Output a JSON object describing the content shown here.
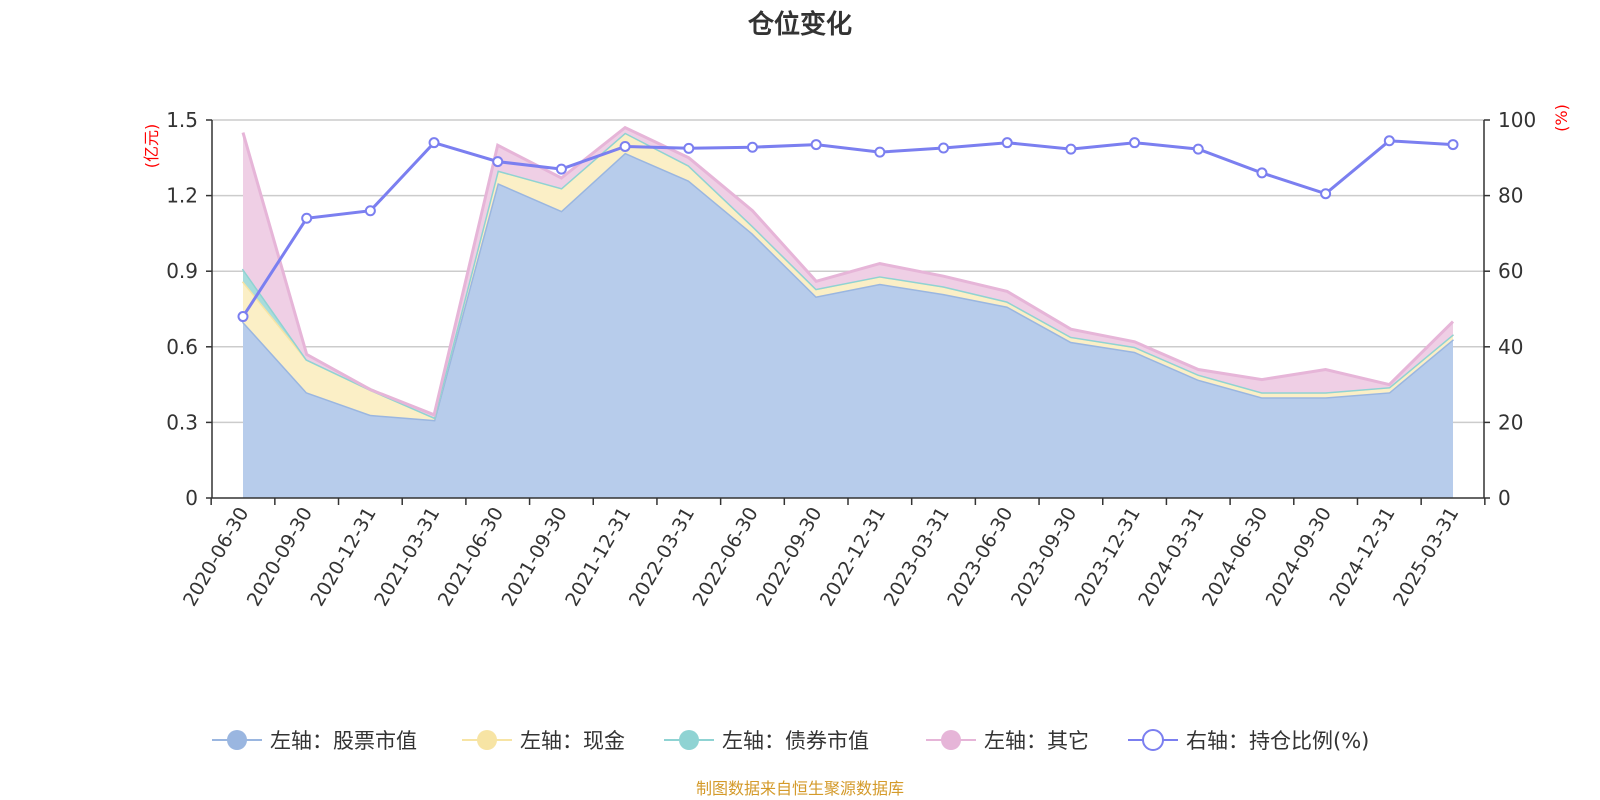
{
  "chart_data": {
    "type": "area",
    "title": "仓位变化",
    "left_axis_unit": "(亿元)",
    "right_axis_unit": "(%)",
    "x": [
      "2020-06-30",
      "2020-09-30",
      "2020-12-31",
      "2021-03-31",
      "2021-06-30",
      "2021-09-30",
      "2021-12-31",
      "2022-03-31",
      "2022-06-30",
      "2022-09-30",
      "2022-12-31",
      "2023-03-31",
      "2023-06-30",
      "2023-09-30",
      "2023-12-31",
      "2024-03-31",
      "2024-06-30",
      "2024-09-30",
      "2024-12-31",
      "2025-03-31"
    ],
    "y_left_ticks": [
      "0",
      "0.3",
      "0.6",
      "0.9",
      "1.2",
      "1.5"
    ],
    "y_right_ticks": [
      "0",
      "20",
      "40",
      "60",
      "80",
      "100"
    ],
    "ylim_left": [
      0,
      1.5
    ],
    "ylim_right": [
      0,
      100
    ],
    "stacked": true,
    "grid": true,
    "legend_position": "bottom",
    "series": [
      {
        "name": "左轴：股票市值",
        "axis": "left",
        "color": "#9ab6e0",
        "fill": "#b7cceb",
        "values": [
          0.7,
          0.42,
          0.33,
          0.31,
          1.25,
          1.14,
          1.37,
          1.26,
          1.05,
          0.8,
          0.85,
          0.81,
          0.76,
          0.62,
          0.58,
          0.47,
          0.4,
          0.4,
          0.42,
          0.63
        ]
      },
      {
        "name": "左轴：现金",
        "axis": "left",
        "color": "#f7e4a4",
        "fill": "#fbefc6",
        "values": [
          0.16,
          0.13,
          0.1,
          0.01,
          0.05,
          0.09,
          0.08,
          0.06,
          0.03,
          0.03,
          0.03,
          0.03,
          0.02,
          0.02,
          0.02,
          0.02,
          0.02,
          0.02,
          0.02,
          0.02
        ]
      },
      {
        "name": "左轴：债券市值",
        "axis": "left",
        "color": "#8fd3d3",
        "fill": "#a8dcdc",
        "values": [
          0.05,
          0.0,
          0.0,
          0.0,
          0.0,
          0.0,
          0.0,
          0.0,
          0.0,
          0.0,
          0.0,
          0.0,
          0.0,
          0.0,
          0.0,
          0.0,
          0.0,
          0.0,
          0.0,
          0.0
        ]
      },
      {
        "name": "左轴：其它",
        "axis": "left",
        "color": "#e6b5d8",
        "fill": "#efcfe5",
        "values": [
          0.54,
          0.02,
          0.0,
          0.01,
          0.1,
          0.04,
          0.02,
          0.03,
          0.06,
          0.03,
          0.05,
          0.04,
          0.04,
          0.03,
          0.02,
          0.02,
          0.05,
          0.09,
          0.01,
          0.05
        ]
      },
      {
        "name": "右轴：持仓比例(%)",
        "axis": "right",
        "color": "#7b7ff0",
        "line": true,
        "values": [
          48,
          74,
          76,
          94,
          89,
          87,
          93,
          92.5,
          92.8,
          93.5,
          91.5,
          92.6,
          94,
          92.3,
          94,
          92.3,
          86,
          80.5,
          94.5,
          93.5
        ]
      }
    ]
  },
  "source": "制图数据来自恒生聚源数据库"
}
